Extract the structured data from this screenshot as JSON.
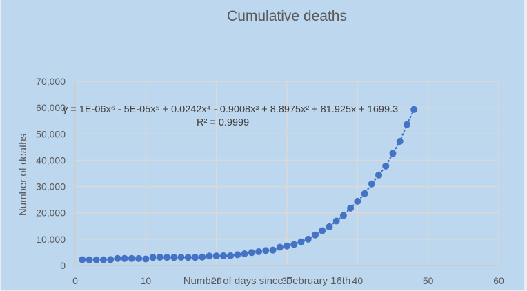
{
  "chart_data": {
    "type": "scatter",
    "title": "Cumulative deaths",
    "xlabel": "Number of days since February 16th",
    "ylabel": "Number of deaths",
    "xlim": [
      0,
      60
    ],
    "ylim": [
      0,
      70000
    ],
    "x_ticks": [
      0,
      10,
      20,
      30,
      40,
      50,
      60
    ],
    "y_ticks": [
      0,
      10000,
      20000,
      30000,
      40000,
      50000,
      60000,
      70000
    ],
    "x_tick_labels": [
      "0",
      "10",
      "20",
      "30",
      "40",
      "50",
      "60"
    ],
    "y_tick_labels": [
      "0",
      "10,000",
      "20,000",
      "30,000",
      "40,000",
      "50,000",
      "60,000",
      "70,000"
    ],
    "grid": true,
    "legend": "none",
    "series": [
      {
        "name": "Cumulative deaths",
        "marker": "circle",
        "color": "#4472c4",
        "x": [
          1,
          2,
          3,
          4,
          5,
          6,
          7,
          8,
          9,
          10,
          11,
          12,
          13,
          14,
          15,
          16,
          17,
          18,
          19,
          20,
          21,
          22,
          23,
          24,
          25,
          26,
          27,
          28,
          29,
          30,
          31,
          32,
          33,
          34,
          35,
          36,
          37,
          38,
          39,
          40,
          41,
          42,
          43,
          44,
          45,
          46,
          47,
          48
        ],
        "y": [
          2200,
          2150,
          2150,
          2200,
          2250,
          2700,
          2700,
          2700,
          2650,
          2500,
          3100,
          3150,
          3100,
          3100,
          3150,
          3100,
          3100,
          3200,
          3600,
          3650,
          3700,
          3700,
          4100,
          4450,
          4900,
          5250,
          5700,
          5850,
          6950,
          7400,
          8000,
          9000,
          10000,
          11600,
          13200,
          14700,
          16900,
          19000,
          21800,
          24400,
          27300,
          31000,
          34400,
          37800,
          42600,
          47200,
          53600,
          59300
        ]
      }
    ],
    "trendline": {
      "type": "polynomial",
      "order": 6,
      "style": "dotted",
      "color": "#4472c4",
      "equation": "y = 1E-06x⁶ - 5E-05x⁵ + 0.0242x⁴ - 0.9008x³ + 8.8975x² + 81.925x + 1699.3",
      "r_squared": "R² = 0.9999"
    }
  },
  "colors": {
    "background": "#bdd7ee",
    "gridline": "#d9d9d9",
    "text": "#595959",
    "marker": "#4472c4"
  }
}
